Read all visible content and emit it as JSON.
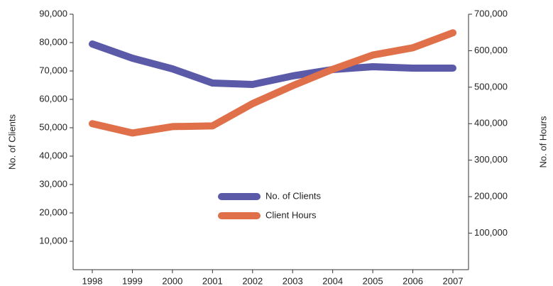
{
  "chart_data": {
    "type": "line",
    "categories": [
      "1998",
      "1999",
      "2000",
      "2001",
      "2002",
      "2003",
      "2004",
      "2005",
      "2006",
      "2007"
    ],
    "series": [
      {
        "name": "No. of Clients",
        "color": "#5b5aa8",
        "values": [
          79500,
          74500,
          70750,
          65750,
          65250,
          68250,
          70500,
          71500,
          71000,
          71000
        ]
      },
      {
        "name": "Client Hours",
        "color": "#e0704a",
        "axis": "y2",
        "values": [
          400000,
          374500,
          392000,
          394000,
          455000,
          504000,
          549000,
          588000,
          608000,
          649000
        ]
      }
    ],
    "ylabel": "No. of Clients",
    "y2label": "No. of Hours",
    "ylim": [
      0,
      90000
    ],
    "yticks": [
      {
        "value": 10000,
        "label": "10,000"
      },
      {
        "value": 20000,
        "label": "20,000"
      },
      {
        "value": 30000,
        "label": "30,000"
      },
      {
        "value": 40000,
        "label": "40,000"
      },
      {
        "value": 50000,
        "label": "50,000"
      },
      {
        "value": 60000,
        "label": "60,000"
      },
      {
        "value": 70000,
        "label": "70,000"
      },
      {
        "value": 80000,
        "label": "80,000"
      },
      {
        "value": 90000,
        "label": "90,000"
      }
    ],
    "y2lim": [
      0,
      700000
    ],
    "y2ticks": [
      {
        "value": 100000,
        "label": "100,000"
      },
      {
        "value": 200000,
        "label": "200,000"
      },
      {
        "value": 300000,
        "label": "300,000"
      },
      {
        "value": 400000,
        "label": "400,000"
      },
      {
        "value": 500000,
        "label": "500,000"
      },
      {
        "value": 600000,
        "label": "600,000"
      },
      {
        "value": 700000,
        "label": "700,000"
      }
    ],
    "legend": "center"
  }
}
